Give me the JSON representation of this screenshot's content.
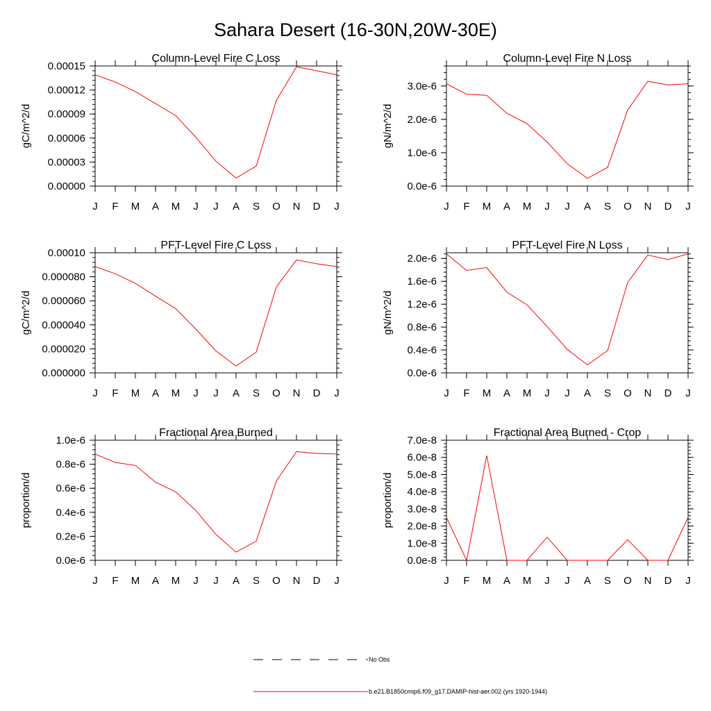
{
  "figure": {
    "title": "Sahara Desert (16-30N,20W-30E)"
  },
  "chart_data": [
    {
      "type": "line",
      "title": "Column-Level Fire C Loss",
      "xlabel": "",
      "ylabel": "gC/m^2/d",
      "categories": [
        "J",
        "F",
        "M",
        "A",
        "M",
        "J",
        "J",
        "A",
        "S",
        "O",
        "N",
        "D",
        "J"
      ],
      "ylim": [
        0,
        0.00015
      ],
      "yticks": [
        0,
        3e-05,
        6e-05,
        9e-05,
        0.00012,
        0.00015
      ],
      "ytick_labels": [
        "0.00000",
        "0.00003",
        "0.00006",
        "0.00009",
        "0.00012",
        "0.00015"
      ],
      "series": [
        {
          "color": "#ff0000",
          "values": [
            0.000139,
            0.00013,
            0.000118,
            0.000103,
            8.8e-05,
            6.1e-05,
            3.1e-05,
            1e-05,
            2.5e-05,
            0.000107,
            0.000149,
            0.000144,
            0.000139
          ]
        }
      ]
    },
    {
      "type": "line",
      "title": "Column-Level Fire N Loss",
      "xlabel": "",
      "ylabel": "gN/m^2/d",
      "categories": [
        "J",
        "F",
        "M",
        "A",
        "M",
        "J",
        "J",
        "A",
        "S",
        "O",
        "N",
        "D",
        "J"
      ],
      "ylim": [
        0,
        3.6e-06
      ],
      "yticks": [
        0,
        1e-06,
        2e-06,
        3e-06
      ],
      "ytick_labels": [
        "0.0e-6",
        "1.0e-6",
        "2.0e-6",
        "3.0e-6"
      ],
      "series": [
        {
          "color": "#ff0000",
          "values": [
            3.07e-06,
            2.75e-06,
            2.72e-06,
            2.18e-06,
            1.87e-06,
            1.32e-06,
            6.7e-07,
            2.3e-07,
            5.6e-07,
            2.28e-06,
            3.14e-06,
            3.03e-06,
            3.07e-06
          ]
        }
      ]
    },
    {
      "type": "line",
      "title": "PFT-Level Fire C Loss",
      "xlabel": "",
      "ylabel": "gC/m^2/d",
      "categories": [
        "J",
        "F",
        "M",
        "A",
        "M",
        "J",
        "J",
        "A",
        "S",
        "O",
        "N",
        "D",
        "J"
      ],
      "ylim": [
        0,
        0.0001
      ],
      "yticks": [
        0,
        2e-05,
        4e-05,
        6e-05,
        8e-05,
        0.0001
      ],
      "ytick_labels": [
        "0.000000",
        "0.000020",
        "0.000040",
        "0.000060",
        "0.000080",
        "0.00010"
      ],
      "series": [
        {
          "color": "#ff0000",
          "values": [
            8.85e-05,
            8.25e-05,
            7.45e-05,
            6.38e-05,
            5.35e-05,
            3.65e-05,
            1.82e-05,
            5.7e-06,
            1.72e-05,
            7.15e-05,
            9.4e-05,
            9.08e-05,
            8.85e-05
          ]
        }
      ]
    },
    {
      "type": "line",
      "title": "PFT-Level Fire N Loss",
      "xlabel": "",
      "ylabel": "gN/m^2/d",
      "categories": [
        "J",
        "F",
        "M",
        "A",
        "M",
        "J",
        "J",
        "A",
        "S",
        "O",
        "N",
        "D",
        "J"
      ],
      "ylim": [
        0,
        2.1e-06
      ],
      "yticks": [
        0,
        4e-07,
        8e-07,
        1.2e-06,
        1.6e-06,
        2e-06
      ],
      "ytick_labels": [
        "0.0e-6",
        "0.4e-6",
        "0.8e-6",
        "1.2e-6",
        "1.6e-6",
        "2.0e-6"
      ],
      "series": [
        {
          "color": "#ff0000",
          "values": [
            2.08e-06,
            1.79e-06,
            1.84e-06,
            1.41e-06,
            1.19e-06,
            8.1e-07,
            4.1e-07,
            1.4e-07,
            3.9e-07,
            1.58e-06,
            2.06e-06,
            1.98e-06,
            2.08e-06
          ]
        }
      ]
    },
    {
      "type": "line",
      "title": "Fractional Area Burned",
      "xlabel": "",
      "ylabel": "proportion/d",
      "categories": [
        "J",
        "F",
        "M",
        "A",
        "M",
        "J",
        "J",
        "A",
        "S",
        "O",
        "N",
        "D",
        "J"
      ],
      "ylim": [
        0,
        1e-06
      ],
      "yticks": [
        0,
        2e-07,
        4e-07,
        6e-07,
        8e-07,
        1e-06
      ],
      "ytick_labels": [
        "0.0e-6",
        "0.2e-6",
        "0.4e-6",
        "0.6e-6",
        "0.8e-6",
        "1.0e-6"
      ],
      "series": [
        {
          "color": "#ff0000",
          "values": [
            8.85e-07,
            8.15e-07,
            7.9e-07,
            6.5e-07,
            5.7e-07,
            4.15e-07,
            2.15e-07,
            6.8e-08,
            1.6e-07,
            6.6e-07,
            9.05e-07,
            8.9e-07,
            8.85e-07
          ]
        }
      ]
    },
    {
      "type": "line",
      "title": "Fractional Area Burned - Crop",
      "xlabel": "",
      "ylabel": "proportion/d",
      "categories": [
        "J",
        "F",
        "M",
        "A",
        "M",
        "J",
        "J",
        "A",
        "S",
        "O",
        "N",
        "D",
        "J"
      ],
      "ylim": [
        0,
        7e-08
      ],
      "yticks": [
        0,
        1e-08,
        2e-08,
        3e-08,
        4e-08,
        5e-08,
        6e-08,
        7e-08
      ],
      "ytick_labels": [
        "0.0e-8",
        "1.0e-8",
        "2.0e-8",
        "3.0e-8",
        "4.0e-8",
        "5.0e-8",
        "6.0e-8",
        "7.0e-8"
      ],
      "series": [
        {
          "color": "#ff0000",
          "values": [
            2.5e-08,
            0,
            6.1e-08,
            0,
            0,
            1.35e-08,
            0,
            0,
            0,
            1.2e-08,
            0,
            0,
            2.5e-08
          ]
        }
      ]
    }
  ],
  "legend": {
    "placement": "bottom-center",
    "entries": [
      {
        "label": "No Obs",
        "style": "dashed",
        "color": "#000000"
      },
      {
        "label": "b.e21.B1850cmip6.f09_g17.DAMIP-hist-aer.002 (yrs 1920-1944)",
        "style": "solid",
        "color": "#ff0000"
      }
    ]
  }
}
